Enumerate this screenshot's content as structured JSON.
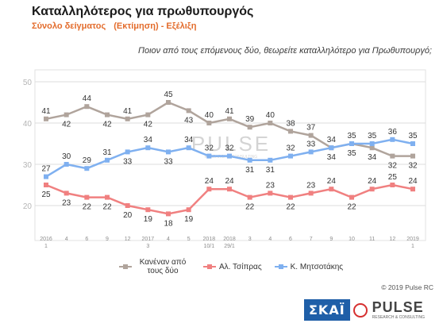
{
  "header": {
    "title": "Καταλληλότερος για πρωθυπουργός",
    "subtitle_left": "Σύνολο δείγματος",
    "subtitle_right": "(Εκτίμηση) - Εξέλιξη",
    "question": "Ποιον από τους επόμενους δύο, θεωρείτε καταλληλότερο για Πρωθυπουργό;"
  },
  "watermark": {
    "word": "PULSE",
    "sub": "RESEARCH & CONSULTING"
  },
  "chart_data": {
    "type": "line",
    "ylim": [
      15,
      50
    ],
    "yticks": [
      20,
      30,
      40,
      50
    ],
    "grid": true,
    "categories": [
      [
        "2016",
        "1"
      ],
      [
        "4"
      ],
      [
        "6"
      ],
      [
        "9"
      ],
      [
        "12"
      ],
      [
        "2017",
        "3"
      ],
      [
        "4"
      ],
      [
        "5"
      ],
      [
        "2018",
        "10/1"
      ],
      [
        "2018",
        "29/1"
      ],
      [
        "3"
      ],
      [
        "4"
      ],
      [
        "6"
      ],
      [
        "7"
      ],
      [
        "9"
      ],
      [
        "10"
      ],
      [
        "11"
      ],
      [
        "12"
      ],
      [
        "2019",
        "1"
      ]
    ],
    "series": [
      {
        "name": "Κανέναν από τους δύο",
        "color": "#b0a49c",
        "values": [
          41,
          42,
          44,
          42,
          41,
          42,
          45,
          43,
          40,
          41,
          39,
          40,
          38,
          37,
          34,
          35,
          34,
          32,
          32
        ],
        "label_pos": [
          "above",
          "below",
          "above",
          "below",
          "above",
          "below",
          "above",
          "below",
          "above",
          "above",
          "above",
          "above",
          "above",
          "above",
          "below",
          "below",
          "below",
          "below",
          "below"
        ]
      },
      {
        "name": "Αλ. Τσίπρας",
        "color": "#f08080",
        "values": [
          25,
          23,
          22,
          22,
          20,
          19,
          18,
          19,
          24,
          24,
          22,
          23,
          22,
          23,
          24,
          22,
          24,
          25,
          24
        ],
        "label_pos": [
          "below",
          "below",
          "below",
          "below",
          "below",
          "below",
          "below",
          "below",
          "above",
          "above",
          "below",
          "above",
          "below",
          "above",
          "above",
          "below",
          "above",
          "above",
          "above"
        ]
      },
      {
        "name": "Κ. Μητσοτάκης",
        "color": "#7fb0f0",
        "values": [
          27,
          30,
          29,
          31,
          33,
          34,
          33,
          34,
          32,
          32,
          31,
          31,
          32,
          33,
          34,
          35,
          35,
          36,
          35
        ],
        "label_pos": [
          "above",
          "above",
          "above",
          "above",
          "below",
          "above",
          "below",
          "above",
          "above",
          "above",
          "below",
          "below",
          "above",
          "above",
          "above",
          "above",
          "above",
          "above",
          "above"
        ]
      }
    ]
  },
  "legend": [
    {
      "label": "Κανέναν από τους δύο",
      "color": "#b0a49c"
    },
    {
      "label": "Αλ. Τσίπρας",
      "color": "#f08080"
    },
    {
      "label": "Κ. Μητσοτάκης",
      "color": "#7fb0f0"
    }
  ],
  "footer": {
    "copyright": "© 2019 Pulse RC",
    "skai_logo": "ΣΚΑΪ",
    "pulse_logo": "PULSE",
    "pulse_logo_sub": "RESEARCH & CONSULTING"
  }
}
